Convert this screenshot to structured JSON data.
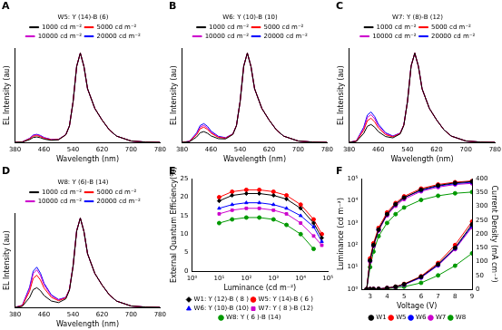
{
  "chart_data": [
    {
      "type": "line",
      "title": "A",
      "subtitle": "W5: Y (14)-B (6)",
      "x_label": "Wavelength (nm)",
      "y_label": "EL Intensity (au)",
      "x": [
        380,
        400,
        420,
        430,
        440,
        450,
        460,
        480,
        500,
        520,
        530,
        540,
        550,
        560,
        570,
        580,
        600,
        620,
        640,
        660,
        700,
        740,
        780
      ],
      "series": [
        {
          "name": "1000 cd m⁻²",
          "color": "#000000",
          "values": [
            0,
            0.003,
            0.03,
            0.054,
            0.06,
            0.051,
            0.036,
            0.023,
            0.029,
            0.084,
            0.183,
            0.452,
            0.851,
            1.0,
            0.85,
            0.6,
            0.38,
            0.25,
            0.14,
            0.07,
            0.015,
            0.003,
            0
          ]
        },
        {
          "name": "5000 cd m⁻²",
          "color": "#ff0000",
          "values": [
            0,
            0.004,
            0.038,
            0.068,
            0.075,
            0.064,
            0.045,
            0.028,
            0.031,
            0.085,
            0.184,
            0.452,
            0.852,
            1.0,
            0.85,
            0.6,
            0.38,
            0.25,
            0.14,
            0.07,
            0.015,
            0.003,
            0
          ]
        },
        {
          "name": "10000 cd m⁻²",
          "color": "#cc00cc",
          "values": [
            0,
            0.004,
            0.043,
            0.077,
            0.085,
            0.072,
            0.051,
            0.031,
            0.033,
            0.086,
            0.184,
            0.453,
            0.852,
            1.0,
            0.85,
            0.6,
            0.38,
            0.25,
            0.14,
            0.07,
            0.015,
            0.003,
            0
          ]
        },
        {
          "name": "20000 cd m⁻²",
          "color": "#0000ff",
          "values": [
            0,
            0.005,
            0.045,
            0.081,
            0.09,
            0.077,
            0.054,
            0.032,
            0.034,
            0.086,
            0.185,
            0.453,
            0.852,
            1.0,
            0.85,
            0.6,
            0.38,
            0.25,
            0.14,
            0.07,
            0.015,
            0.003,
            0
          ]
        }
      ],
      "xlim": [
        380,
        780
      ],
      "xticks": [
        380,
        460,
        540,
        620,
        700,
        780
      ],
      "ylim": [
        0,
        1.05
      ],
      "grid": false,
      "legend": "top",
      "tick_labels": "x"
    },
    {
      "type": "line",
      "title": "B",
      "subtitle": "W6: Y (10)-B (10)",
      "x_label": "Wavelength (nm)",
      "y_label": "EL Intensity (au)",
      "x": [
        380,
        400,
        420,
        430,
        440,
        450,
        460,
        480,
        500,
        520,
        530,
        540,
        550,
        560,
        570,
        580,
        600,
        620,
        640,
        660,
        700,
        740,
        780
      ],
      "series": [
        {
          "name": "1000 cd m⁻²",
          "color": "#000000",
          "values": [
            0,
            0.006,
            0.06,
            0.108,
            0.12,
            0.102,
            0.072,
            0.041,
            0.038,
            0.088,
            0.186,
            0.454,
            0.852,
            1.0,
            0.85,
            0.6,
            0.38,
            0.25,
            0.14,
            0.07,
            0.015,
            0.003,
            0
          ]
        },
        {
          "name": "5000 cd m⁻²",
          "color": "#ff0000",
          "values": [
            0,
            0.009,
            0.085,
            0.153,
            0.17,
            0.145,
            0.102,
            0.056,
            0.046,
            0.092,
            0.189,
            0.455,
            0.853,
            1.0,
            0.85,
            0.6,
            0.38,
            0.25,
            0.14,
            0.07,
            0.015,
            0.003,
            0
          ]
        },
        {
          "name": "10000 cd m⁻²",
          "color": "#cc00cc",
          "values": [
            0,
            0.01,
            0.095,
            0.171,
            0.19,
            0.162,
            0.114,
            0.062,
            0.049,
            0.093,
            0.19,
            0.456,
            0.854,
            1.0,
            0.85,
            0.6,
            0.38,
            0.25,
            0.14,
            0.07,
            0.015,
            0.003,
            0
          ]
        },
        {
          "name": "20000 cd m⁻²",
          "color": "#0000ff",
          "values": [
            0,
            0.011,
            0.105,
            0.189,
            0.21,
            0.179,
            0.126,
            0.068,
            0.052,
            0.095,
            0.191,
            0.456,
            0.854,
            1.0,
            0.85,
            0.6,
            0.38,
            0.25,
            0.14,
            0.07,
            0.015,
            0.003,
            0
          ]
        }
      ],
      "xlim": [
        380,
        780
      ],
      "xticks": [
        380,
        460,
        540,
        620,
        700,
        780
      ],
      "ylim": [
        0,
        1.05
      ],
      "grid": false,
      "legend": "top",
      "tick_labels": "x"
    },
    {
      "type": "line",
      "title": "C",
      "subtitle": "W7: Y (8)-B (12)",
      "x_label": "Wavelength (nm)",
      "y_label": "EL Intensity (au)",
      "x": [
        380,
        400,
        420,
        430,
        440,
        450,
        460,
        480,
        500,
        520,
        530,
        540,
        550,
        560,
        570,
        580,
        600,
        620,
        640,
        660,
        700,
        740,
        780
      ],
      "series": [
        {
          "name": "1000 cd m⁻²",
          "color": "#000000",
          "values": [
            0,
            0.01,
            0.1,
            0.18,
            0.2,
            0.17,
            0.12,
            0.065,
            0.05,
            0.094,
            0.19,
            0.456,
            0.854,
            1.0,
            0.85,
            0.6,
            0.38,
            0.25,
            0.14,
            0.07,
            0.015,
            0.003,
            0
          ]
        },
        {
          "name": "5000 cd m⁻²",
          "color": "#ff0000",
          "values": [
            0,
            0.014,
            0.135,
            0.243,
            0.27,
            0.23,
            0.162,
            0.086,
            0.061,
            0.099,
            0.194,
            0.458,
            0.855,
            1.0,
            0.85,
            0.6,
            0.38,
            0.25,
            0.14,
            0.07,
            0.015,
            0.003,
            0
          ]
        },
        {
          "name": "10000 cd m⁻²",
          "color": "#cc00cc",
          "values": [
            0,
            0.016,
            0.155,
            0.279,
            0.31,
            0.264,
            0.186,
            0.098,
            0.067,
            0.102,
            0.196,
            0.459,
            0.856,
            1.0,
            0.85,
            0.6,
            0.38,
            0.25,
            0.14,
            0.07,
            0.015,
            0.003,
            0
          ]
        },
        {
          "name": "20000 cd m⁻²",
          "color": "#0000ff",
          "values": [
            0,
            0.017,
            0.17,
            0.306,
            0.34,
            0.289,
            0.204,
            0.107,
            0.071,
            0.104,
            0.197,
            0.46,
            0.857,
            1.0,
            0.85,
            0.6,
            0.38,
            0.25,
            0.14,
            0.07,
            0.015,
            0.003,
            0
          ]
        }
      ],
      "xlim": [
        380,
        780
      ],
      "xticks": [
        380,
        460,
        540,
        620,
        700,
        780
      ],
      "ylim": [
        0,
        1.05
      ],
      "grid": false,
      "legend": "top",
      "tick_labels": "x"
    },
    {
      "type": "line",
      "title": "D",
      "subtitle": "W8: Y (6)-B (14)",
      "x_label": "Wavelength (nm)",
      "y_label": "EL Intensity (au)",
      "x": [
        380,
        400,
        420,
        430,
        440,
        450,
        460,
        480,
        500,
        520,
        530,
        540,
        550,
        560,
        570,
        580,
        600,
        620,
        640,
        660,
        700,
        740,
        780
      ],
      "series": [
        {
          "name": "1000 cd m⁻²",
          "color": "#000000",
          "values": [
            0,
            0.011,
            0.11,
            0.198,
            0.22,
            0.187,
            0.132,
            0.071,
            0.053,
            0.095,
            0.191,
            0.457,
            0.854,
            1.0,
            0.85,
            0.6,
            0.38,
            0.25,
            0.14,
            0.07,
            0.015,
            0.003,
            0
          ]
        },
        {
          "name": "5000 cd m⁻²",
          "color": "#ff0000",
          "values": [
            0,
            0.018,
            0.18,
            0.324,
            0.36,
            0.306,
            0.216,
            0.113,
            0.074,
            0.105,
            0.198,
            0.461,
            0.857,
            1.0,
            0.85,
            0.6,
            0.38,
            0.25,
            0.14,
            0.07,
            0.015,
            0.003,
            0
          ]
        },
        {
          "name": "10000 cd m⁻²",
          "color": "#cc00cc",
          "values": [
            0,
            0.021,
            0.21,
            0.378,
            0.42,
            0.357,
            0.252,
            0.131,
            0.083,
            0.109,
            0.201,
            0.463,
            0.858,
            1.0,
            0.85,
            0.6,
            0.38,
            0.25,
            0.14,
            0.07,
            0.015,
            0.003,
            0
          ]
        },
        {
          "name": "20000 cd m⁻²",
          "color": "#0000ff",
          "values": [
            0,
            0.023,
            0.225,
            0.405,
            0.45,
            0.383,
            0.27,
            0.14,
            0.088,
            0.112,
            0.203,
            0.464,
            0.859,
            1.0,
            0.85,
            0.6,
            0.38,
            0.25,
            0.14,
            0.07,
            0.015,
            0.003,
            0
          ]
        }
      ],
      "xlim": [
        380,
        780
      ],
      "xticks": [
        380,
        460,
        540,
        620,
        700,
        780
      ],
      "ylim": [
        0,
        1.05
      ],
      "grid": false,
      "legend": "top",
      "tick_labels": "x"
    },
    {
      "type": "line",
      "title": "E",
      "x_label": "Luminance (cd m⁻²)",
      "y_label": "External Quantum Efficiency(%)",
      "x": [
        10,
        30,
        100,
        300,
        1000,
        3000,
        10000,
        30000,
        60000
      ],
      "series": [
        {
          "name": "W1: Y (12)-B ( 8 )",
          "color": "#000000",
          "marker": "diamond",
          "values": [
            19,
            20.5,
            21,
            21,
            20.5,
            19.5,
            17,
            13,
            9
          ]
        },
        {
          "name": "W5: Y (14)-B ( 6 )",
          "color": "#ff0000",
          "marker": "circle",
          "values": [
            20,
            21.5,
            22,
            22,
            21.5,
            20.5,
            18,
            14,
            10
          ]
        },
        {
          "name": "W6: Y (10)-B (10)",
          "color": "#0000ff",
          "marker": "triangle",
          "values": [
            17,
            18,
            18.5,
            18.5,
            18,
            17,
            15,
            12,
            8
          ]
        },
        {
          "name": "W7: Y ( 8 )-B (12)",
          "color": "#cc00cc",
          "marker": "square",
          "values": [
            15.5,
            16.5,
            17,
            17,
            16.5,
            15.5,
            13,
            9.5,
            7
          ]
        },
        {
          "name": "W8: Y ( 6 )-B (14)",
          "color": "#009900",
          "marker": "circle",
          "values": [
            13,
            14,
            14.5,
            14.5,
            14,
            12.5,
            10,
            6,
            null
          ]
        }
      ],
      "xlim": [
        1,
        100000
      ],
      "xticks": [
        {
          "value": 1,
          "label": "10⁰"
        },
        {
          "value": 10,
          "label": "10¹"
        },
        {
          "value": 100,
          "label": "10²"
        },
        {
          "value": 1000,
          "label": "10³"
        },
        {
          "value": 10000,
          "label": "10⁴"
        },
        {
          "value": 100000,
          "label": "10⁵"
        }
      ],
      "ylim": [
        0,
        25
      ],
      "yticks": [
        0,
        5,
        10,
        15,
        20,
        25
      ],
      "log": "x",
      "grid": false,
      "legend": "bottom"
    },
    {
      "type": "line",
      "title": "F",
      "x_label": "Voltage (V)",
      "y_label": "Luminance (cd m⁻²)",
      "y2_label": "Current Density (mA cm⁻²)",
      "x": [
        2.8,
        3,
        3.2,
        3.5,
        4,
        4.5,
        5,
        6,
        7,
        8,
        9
      ],
      "series": [
        {
          "name": "W1",
          "color": "#000000",
          "marker": "circle",
          "values": [
            1,
            20,
            100,
            500,
            2500,
            7000,
            14000,
            32000,
            50000,
            65000,
            75000
          ]
        },
        {
          "name": "W5",
          "color": "#ff0000",
          "marker": "circle",
          "values": [
            1,
            25,
            120,
            600,
            3000,
            8000,
            16000,
            36000,
            55000,
            70000,
            80000
          ]
        },
        {
          "name": "W6",
          "color": "#0000ff",
          "marker": "circle",
          "values": [
            1,
            20,
            100,
            500,
            2500,
            7000,
            14000,
            30000,
            47000,
            60000,
            70000
          ]
        },
        {
          "name": "W7",
          "color": "#cc00cc",
          "marker": "circle",
          "values": [
            1,
            18,
            90,
            450,
            2200,
            6000,
            12000,
            27000,
            42000,
            55000,
            62000
          ]
        },
        {
          "name": "W8",
          "color": "#009900",
          "marker": "circle",
          "values": [
            1,
            10,
            50,
            250,
            1000,
            2500,
            5000,
            11000,
            17000,
            22000,
            25000
          ]
        },
        {
          "name": "W1",
          "color": "#000000",
          "marker": "circle",
          "axis": "y2",
          "values": [
            0,
            0.2,
            0.5,
            1,
            4,
            9,
            18,
            45,
            90,
            150,
            235
          ]
        },
        {
          "name": "W5",
          "color": "#ff0000",
          "marker": "circle",
          "axis": "y2",
          "values": [
            0,
            0.2,
            0.5,
            1,
            4,
            9,
            19,
            47,
            95,
            160,
            245
          ]
        },
        {
          "name": "W6",
          "color": "#0000ff",
          "marker": "circle",
          "axis": "y2",
          "values": [
            0,
            0.2,
            0.5,
            1,
            4,
            8,
            17,
            43,
            88,
            148,
            230
          ]
        },
        {
          "name": "W7",
          "color": "#cc00cc",
          "marker": "circle",
          "axis": "y2",
          "values": [
            0,
            0.2,
            0.5,
            1,
            4,
            8,
            16,
            42,
            86,
            145,
            225
          ]
        },
        {
          "name": "W8",
          "color": "#009900",
          "marker": "circle",
          "axis": "y2",
          "values": [
            0,
            0.1,
            0.3,
            0.6,
            2,
            5,
            9,
            23,
            50,
            85,
            130
          ]
        }
      ],
      "xlim": [
        2.5,
        9
      ],
      "xticks": [
        3,
        4,
        5,
        6,
        7,
        8,
        9
      ],
      "ylim": [
        1,
        100000
      ],
      "yticks": [
        {
          "value": 1,
          "label": "10⁰"
        },
        {
          "value": 10,
          "label": "10¹"
        },
        {
          "value": 100,
          "label": "10²"
        },
        {
          "value": 1000,
          "label": "10³"
        },
        {
          "value": 10000,
          "label": "10⁴"
        },
        {
          "value": 100000,
          "label": "10⁵"
        }
      ],
      "y2lim": [
        0,
        400
      ],
      "y2ticks": [
        0,
        50,
        100,
        150,
        200,
        250,
        300,
        350,
        400
      ],
      "log": "y",
      "grid": false,
      "legend": "bottom"
    }
  ]
}
